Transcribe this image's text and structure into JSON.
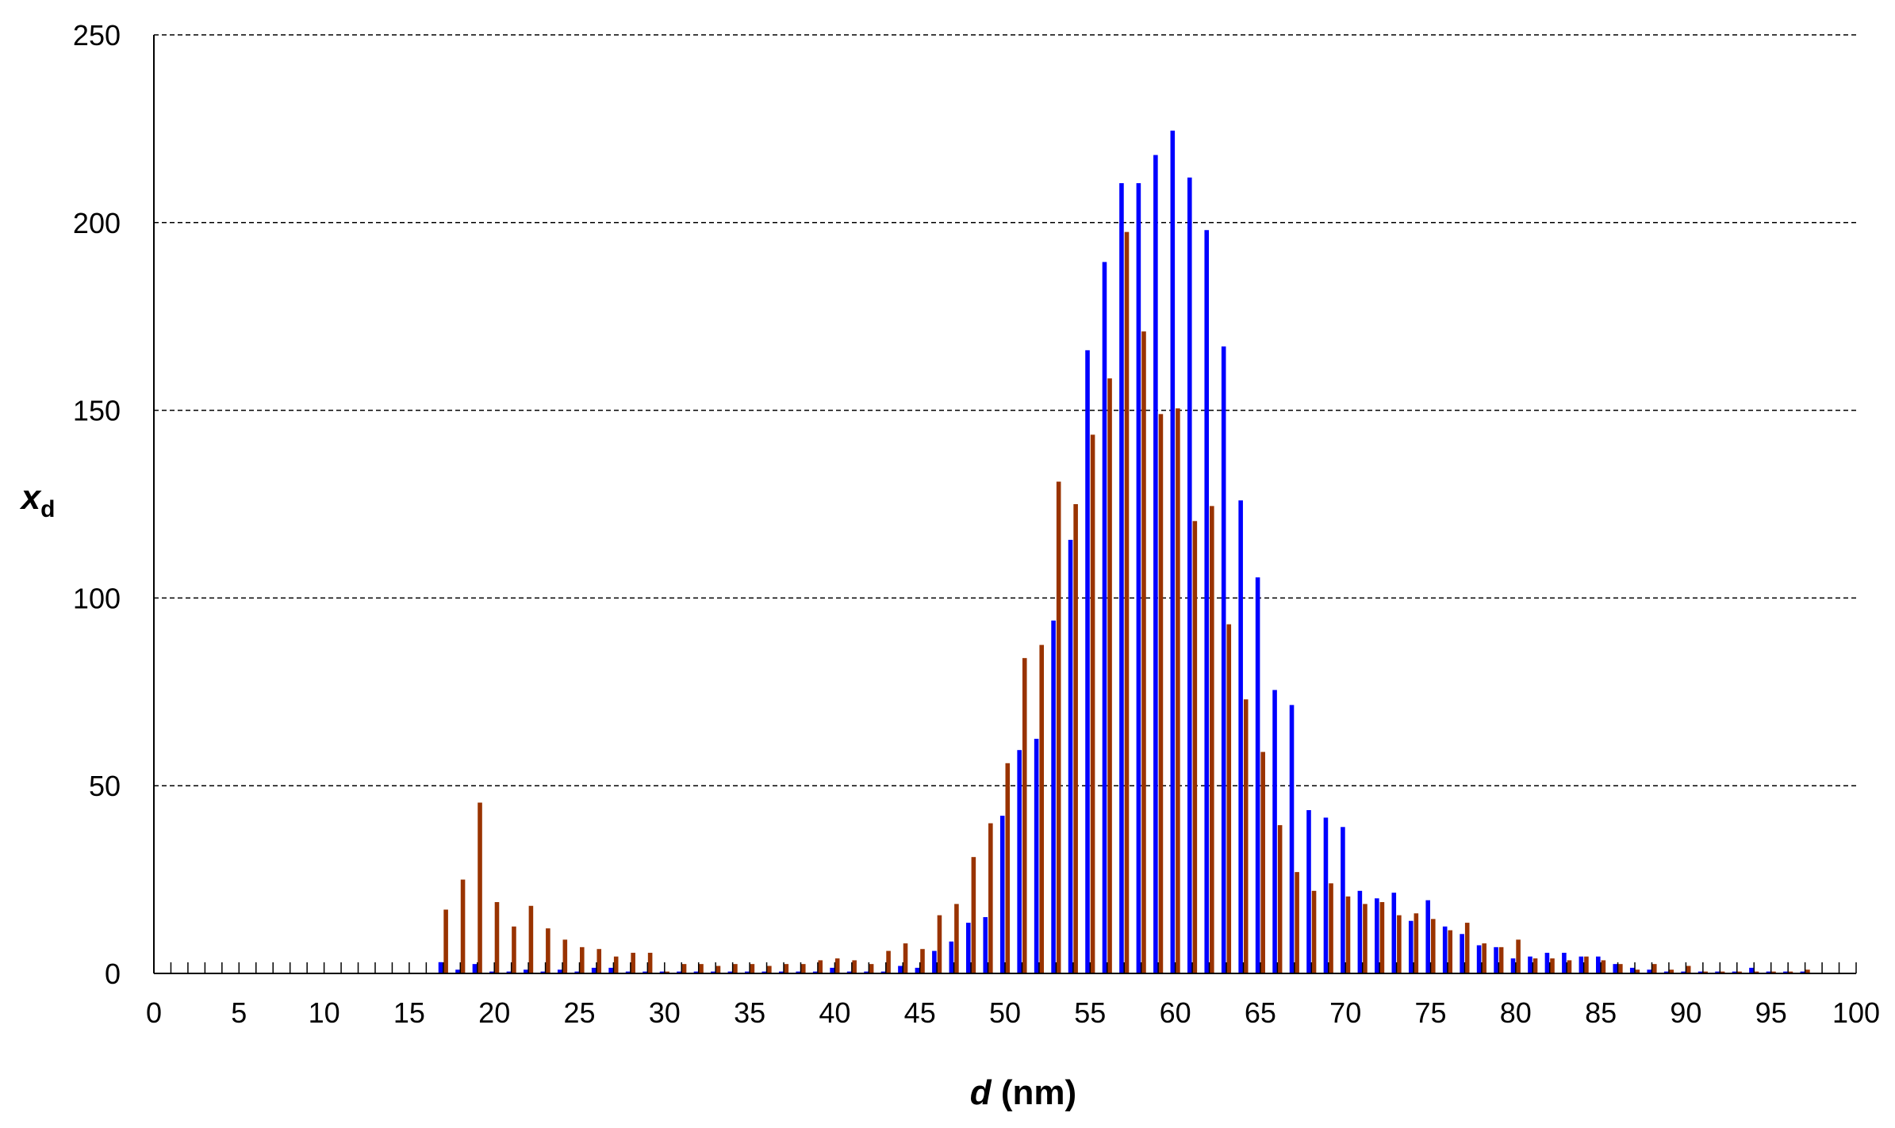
{
  "chart_data": {
    "type": "bar",
    "title": "",
    "xlabel": {
      "var": "d",
      "unit": " (nm)"
    },
    "ylabel": {
      "var": "x",
      "sub": "d"
    },
    "xlim": [
      0,
      100
    ],
    "ylim": [
      0,
      250
    ],
    "x_ticks": [
      0,
      5,
      10,
      15,
      20,
      25,
      30,
      35,
      40,
      45,
      50,
      55,
      60,
      65,
      70,
      75,
      80,
      85,
      90,
      95,
      100
    ],
    "y_ticks": [
      0,
      50,
      100,
      150,
      200,
      250
    ],
    "grid": {
      "horizontal": true,
      "style": "dashed"
    },
    "legend": "none",
    "colors": {
      "series_blue": "#0000ff",
      "series_brown": "#993300",
      "axis": "#000000",
      "grid": "#000000"
    },
    "x": [
      17,
      18,
      19,
      20,
      21,
      22,
      23,
      24,
      25,
      26,
      27,
      28,
      29,
      30,
      31,
      32,
      33,
      34,
      35,
      36,
      37,
      38,
      39,
      40,
      41,
      42,
      43,
      44,
      45,
      46,
      47,
      48,
      49,
      50,
      51,
      52,
      53,
      54,
      55,
      56,
      57,
      58,
      59,
      60,
      61,
      62,
      63,
      64,
      65,
      66,
      67,
      68,
      69,
      70,
      71,
      72,
      73,
      74,
      75,
      76,
      77,
      78,
      79,
      80,
      81,
      82,
      83,
      84,
      85,
      86,
      87,
      88,
      89,
      90,
      91,
      92,
      93,
      94,
      95,
      96,
      97
    ],
    "series": [
      {
        "color": "#0000ff",
        "values": [
          3,
          1,
          2.5,
          0.5,
          0.5,
          1,
          0.5,
          1,
          0.5,
          1.5,
          1.5,
          0.5,
          0.5,
          0.5,
          0.5,
          0.5,
          0.5,
          0.5,
          0.5,
          0.5,
          0.5,
          0.5,
          0.5,
          1.5,
          0.5,
          0.5,
          0.5,
          2,
          1.5,
          6,
          8.5,
          13.5,
          15,
          42,
          59.5,
          62.5,
          94,
          115.5,
          166,
          189.5,
          210.5,
          210.5,
          218,
          224.5,
          212,
          198,
          167,
          126,
          105.5,
          75.5,
          71.5,
          43.5,
          41.5,
          39,
          22,
          20,
          21.5,
          14,
          19.5,
          12.5,
          10.5,
          7.5,
          7,
          4,
          4.5,
          5.5,
          5.5,
          4.5,
          4.5,
          2.5,
          1.5,
          1,
          0.5,
          0.5,
          0.5,
          0.5,
          0.5,
          1.5,
          0.5,
          0.5,
          0.5
        ]
      },
      {
        "color": "#993300",
        "values": [
          17,
          25,
          45.5,
          19,
          12.5,
          18,
          12,
          9,
          7,
          6.5,
          4.5,
          5.5,
          5.5,
          0.5,
          2.5,
          2.5,
          2,
          2.5,
          2.5,
          2,
          2.5,
          2.5,
          3.5,
          4,
          3.5,
          2.5,
          6,
          8,
          6.5,
          15.5,
          18.5,
          31,
          40,
          56,
          84,
          87.5,
          131,
          125,
          143.5,
          158.5,
          197.5,
          171,
          149,
          150.5,
          120.5,
          124.5,
          93,
          73,
          59,
          39.5,
          27,
          22,
          24,
          20.5,
          18.5,
          19,
          15.5,
          16,
          14.5,
          11.5,
          13.5,
          8,
          7,
          9,
          4,
          4,
          3.5,
          4.5,
          3.5,
          2.5,
          1,
          2.5,
          1,
          2,
          0.5,
          0.5,
          0.5,
          0.5,
          0.5,
          0.5,
          1
        ]
      }
    ]
  }
}
